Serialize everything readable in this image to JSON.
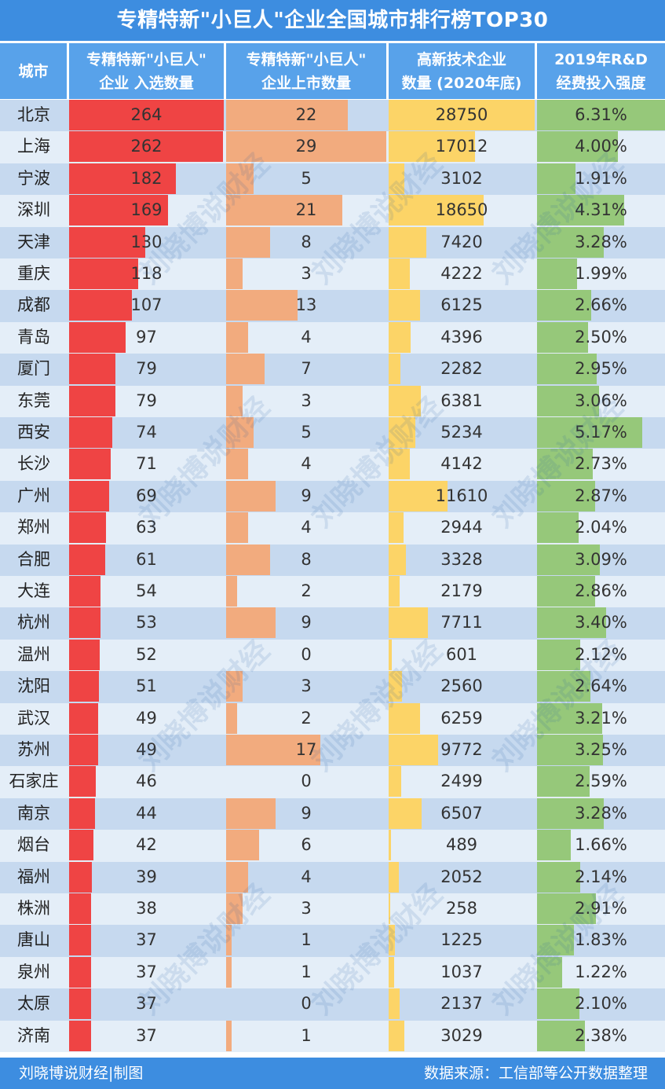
{
  "title": "专精特新\"小巨人\"企业全国城市排行榜TOP30",
  "headers": {
    "city": "城市",
    "col1": [
      "专精特新\"小巨人\"",
      "企业 入选数量"
    ],
    "col2": [
      "专精特新\"小巨人\"",
      "企业上市数量"
    ],
    "col3": [
      "高新技术企业",
      "数量 (2020年底)"
    ],
    "col4": [
      "2019年R&D",
      "经费投入强度"
    ]
  },
  "footer": {
    "credit": "刘晓博说财经|制图",
    "source": "数据来源：工信部等公开数据整理"
  },
  "watermark": "刘晓博说财经",
  "colors": {
    "header_bg": "#58a2ea",
    "title_bg": "#3d8de0",
    "row_light": "#e4eef8",
    "row_dark": "#c6d9ef",
    "bar_red": "#ef4444",
    "bar_orange": "#f2ab7e",
    "bar_yellow": "#fcd467",
    "bar_green": "#96c87a"
  },
  "chart_data": {
    "type": "table",
    "title": "专精特新\"小巨人\"企业全国城市排行榜TOP30",
    "columns": [
      "城市",
      "专精特新\"小巨人\"企业 入选数量",
      "专精特新\"小巨人\"企业上市数量",
      "高新技术企业数量 (2020年底)",
      "2019年R&D经费投入强度"
    ],
    "rows": [
      {
        "city": "北京",
        "selected": 264,
        "listed": 22,
        "hightech": 28750,
        "rd": "6.31%"
      },
      {
        "city": "上海",
        "selected": 262,
        "listed": 29,
        "hightech": 17012,
        "rd": "4.00%"
      },
      {
        "city": "宁波",
        "selected": 182,
        "listed": 5,
        "hightech": 3102,
        "rd": "1.91%"
      },
      {
        "city": "深圳",
        "selected": 169,
        "listed": 21,
        "hightech": 18650,
        "rd": "4.31%"
      },
      {
        "city": "天津",
        "selected": 130,
        "listed": 8,
        "hightech": 7420,
        "rd": "3.28%"
      },
      {
        "city": "重庆",
        "selected": 118,
        "listed": 3,
        "hightech": 4222,
        "rd": "1.99%"
      },
      {
        "city": "成都",
        "selected": 107,
        "listed": 13,
        "hightech": 6125,
        "rd": "2.66%"
      },
      {
        "city": "青岛",
        "selected": 97,
        "listed": 4,
        "hightech": 4396,
        "rd": "2.50%"
      },
      {
        "city": "厦门",
        "selected": 79,
        "listed": 7,
        "hightech": 2282,
        "rd": "2.95%"
      },
      {
        "city": "东莞",
        "selected": 79,
        "listed": 3,
        "hightech": 6381,
        "rd": "3.06%"
      },
      {
        "city": "西安",
        "selected": 74,
        "listed": 5,
        "hightech": 5234,
        "rd": "5.17%"
      },
      {
        "city": "长沙",
        "selected": 71,
        "listed": 4,
        "hightech": 4142,
        "rd": "2.73%"
      },
      {
        "city": "广州",
        "selected": 69,
        "listed": 9,
        "hightech": 11610,
        "rd": "2.87%"
      },
      {
        "city": "郑州",
        "selected": 63,
        "listed": 4,
        "hightech": 2944,
        "rd": "2.04%"
      },
      {
        "city": "合肥",
        "selected": 61,
        "listed": 8,
        "hightech": 3328,
        "rd": "3.09%"
      },
      {
        "city": "大连",
        "selected": 54,
        "listed": 2,
        "hightech": 2179,
        "rd": "2.86%"
      },
      {
        "city": "杭州",
        "selected": 53,
        "listed": 9,
        "hightech": 7711,
        "rd": "3.40%"
      },
      {
        "city": "温州",
        "selected": 52,
        "listed": 0,
        "hightech": 601,
        "rd": "2.12%"
      },
      {
        "city": "沈阳",
        "selected": 51,
        "listed": 3,
        "hightech": 2560,
        "rd": "2.64%"
      },
      {
        "city": "武汉",
        "selected": 49,
        "listed": 2,
        "hightech": 6259,
        "rd": "3.21%"
      },
      {
        "city": "苏州",
        "selected": 49,
        "listed": 17,
        "hightech": 9772,
        "rd": "3.25%"
      },
      {
        "city": "石家庄",
        "selected": 46,
        "listed": 0,
        "hightech": 2499,
        "rd": "2.59%"
      },
      {
        "city": "南京",
        "selected": 44,
        "listed": 9,
        "hightech": 6507,
        "rd": "3.28%"
      },
      {
        "city": "烟台",
        "selected": 42,
        "listed": 6,
        "hightech": 489,
        "rd": "1.66%"
      },
      {
        "city": "福州",
        "selected": 39,
        "listed": 4,
        "hightech": 2052,
        "rd": "2.14%"
      },
      {
        "city": "株洲",
        "selected": 38,
        "listed": 3,
        "hightech": 258,
        "rd": "2.91%"
      },
      {
        "city": "唐山",
        "selected": 37,
        "listed": 1,
        "hightech": 1225,
        "rd": "1.83%"
      },
      {
        "city": "泉州",
        "selected": 37,
        "listed": 1,
        "hightech": 1037,
        "rd": "1.22%"
      },
      {
        "city": "太原",
        "selected": 37,
        "listed": 0,
        "hightech": 2137,
        "rd": "2.10%"
      },
      {
        "city": "济南",
        "selected": 37,
        "listed": 1,
        "hightech": 3029,
        "rd": "2.38%"
      }
    ]
  }
}
